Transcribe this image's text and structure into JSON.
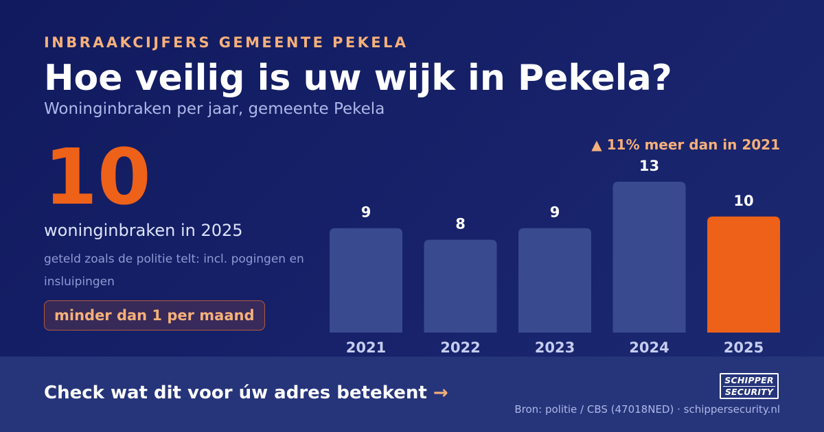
{
  "header": {
    "eyebrow": "INBRAAKCIJFERS GEMEENTE PEKELA",
    "title": "Hoe veilig is uw wijk in Pekela?",
    "subtitle": "Woninginbraken per jaar, gemeente Pekela"
  },
  "highlight": {
    "value": "10",
    "caption": "woninginbraken in 2025",
    "note": "geteld zoals de politie telt: incl. pogingen en insluipingen",
    "pill": "minder dan 1 per maand"
  },
  "trend_label": "▲ 11% meer dan in 2021",
  "chart_data": {
    "type": "bar",
    "title": "",
    "xlabel": "",
    "ylabel": "",
    "categories": [
      "2021",
      "2022",
      "2023",
      "2024",
      "2025"
    ],
    "values": [
      9,
      8,
      9,
      13,
      10
    ],
    "data_labels": [
      "9",
      "8",
      "9",
      "13",
      "10"
    ],
    "highlight_index": 4,
    "ylim": [
      0,
      13
    ],
    "grid": false,
    "colors": {
      "bar": "#3a4a8f",
      "highlight": "#ee6119",
      "label": "#ffffff",
      "tick": "#c6cdf0"
    }
  },
  "footer": {
    "cta": "Check wat dit voor úw adres betekent",
    "cta_arrow": "→",
    "source": "Bron: politie / CBS (47018NED) · schippersecurity.nl",
    "logo_line1": "SCHIPPER",
    "logo_line2": "SECURITY"
  },
  "colors": {
    "background": "#17226a",
    "accent": "#ee6119",
    "accent_soft": "#f6b07a",
    "footer": "#26357a"
  }
}
